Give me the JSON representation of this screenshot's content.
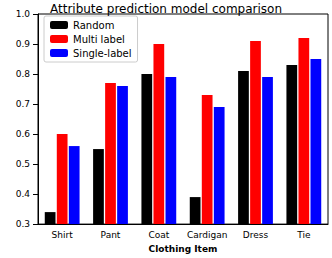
{
  "chart_data": {
    "type": "bar",
    "title": "Attribute prediction model comparison",
    "x_label": "Clothing Item",
    "categories": [
      "Shirt",
      "Pant",
      "Coat",
      "Cardigan",
      "Dress",
      "Tie"
    ],
    "series": [
      {
        "name": "Random",
        "color": "#000000",
        "values": [
          0.34,
          0.55,
          0.8,
          0.39,
          0.81,
          0.83
        ]
      },
      {
        "name": "Multi label",
        "color": "#ff0000",
        "values": [
          0.6,
          0.77,
          0.9,
          0.73,
          0.91,
          0.92
        ]
      },
      {
        "name": "Single-label",
        "color": "#0000ff",
        "values": [
          0.56,
          0.76,
          0.79,
          0.69,
          0.79,
          0.85
        ]
      }
    ],
    "ylim": [
      0.3,
      1.0
    ],
    "yticks": [
      0.3,
      0.4,
      0.5,
      0.6,
      0.7,
      0.8,
      0.9,
      {
        "value": 1.0,
        "label": "1.0"
      }
    ],
    "grid": false,
    "legend": "upper left"
  }
}
